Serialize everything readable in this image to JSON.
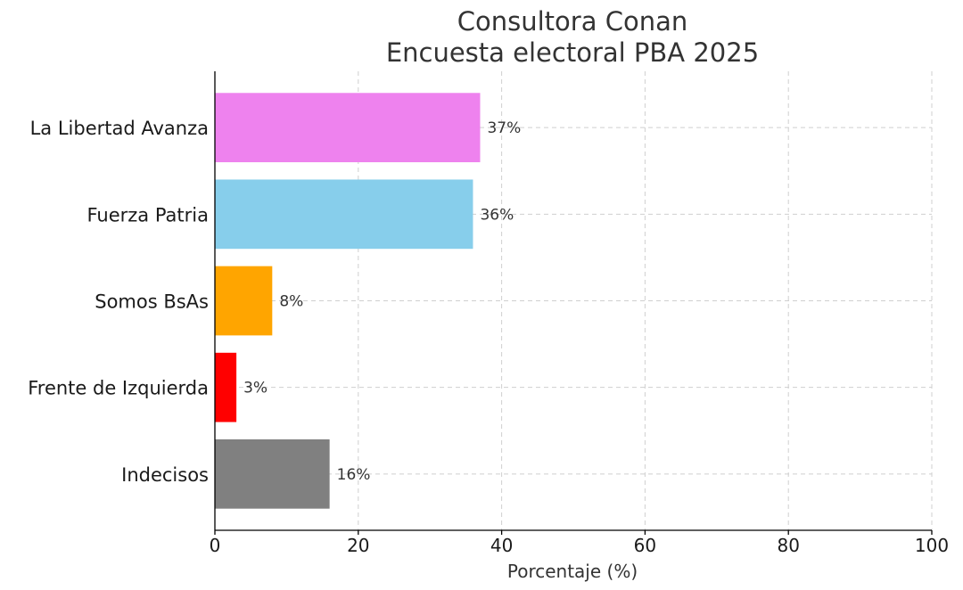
{
  "chart_data": {
    "type": "bar",
    "orientation": "horizontal",
    "title": [
      "Consultora Conan",
      "Encuesta electoral PBA 2025"
    ],
    "xlabel": "Porcentaje (%)",
    "ylabel": "",
    "xlim": [
      0,
      100
    ],
    "xticks": [
      0,
      20,
      40,
      60,
      80,
      100
    ],
    "grid": true,
    "categories": [
      "La Libertad Avanza",
      "Fuerza Patria",
      "Somos BsAs",
      "Frente de Izquierda",
      "Indecisos"
    ],
    "values": [
      37,
      36,
      8,
      3,
      16
    ],
    "data_labels": [
      "37%",
      "36%",
      "8%",
      "3%",
      "16%"
    ],
    "colors": [
      "#ee82ee",
      "#87ceeb",
      "#ffa500",
      "#ff0000",
      "#808080"
    ]
  }
}
